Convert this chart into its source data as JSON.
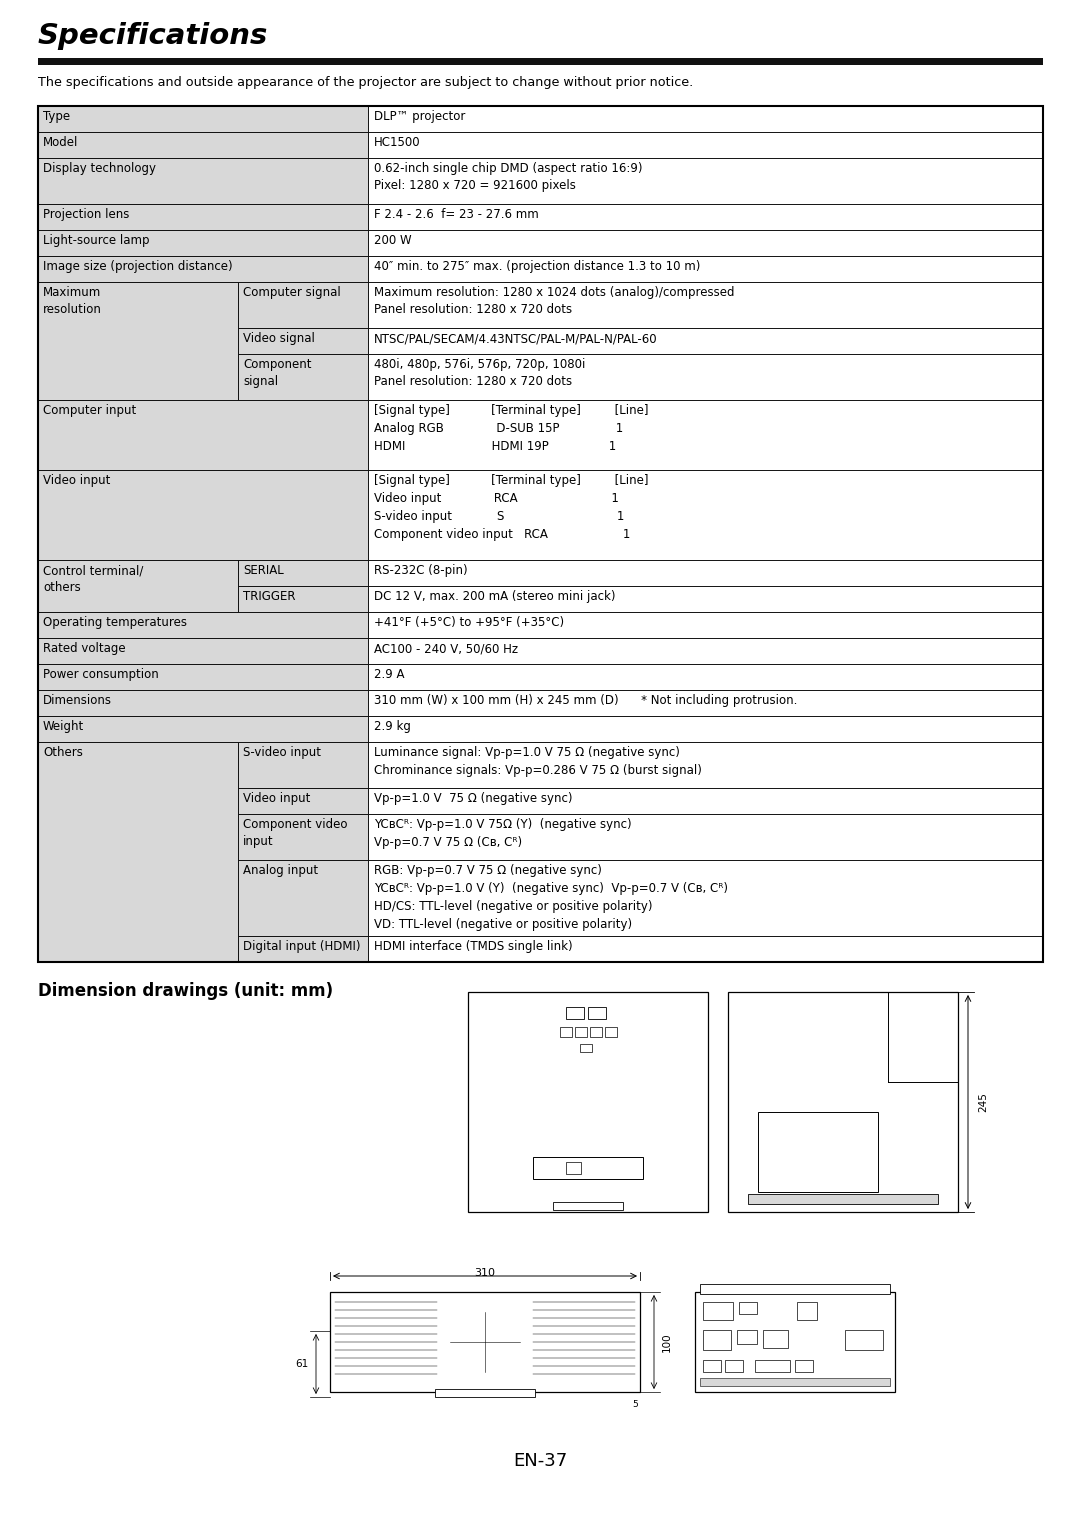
{
  "title": "Specifications",
  "subtitle": "The specifications and outside appearance of the projector are subject to change without prior notice.",
  "page_number": "EN-37",
  "section2_title": "Dimension drawings (unit: mm)",
  "bg_color": "#ffffff",
  "cell_bg": "#d8d8d8",
  "white_bg": "#ffffff"
}
